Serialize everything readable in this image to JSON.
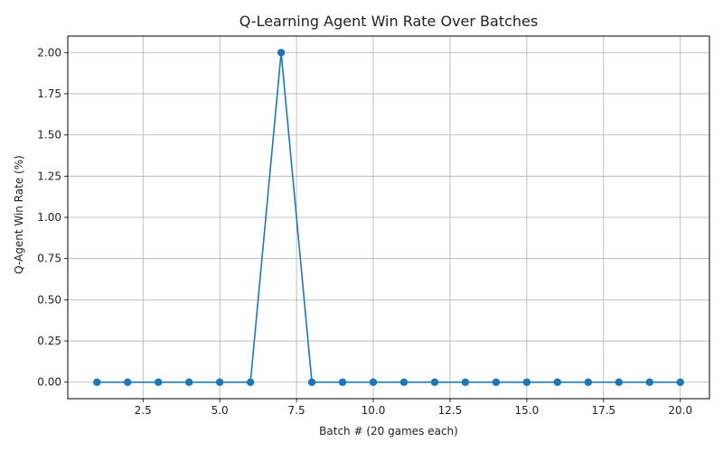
{
  "chart_data": {
    "type": "line",
    "title": "Q-Learning Agent Win Rate Over Batches",
    "xlabel": "Batch # (20 games each)",
    "ylabel": "Q-Agent Win Rate (%)",
    "xlim": [
      0.05,
      20.95
    ],
    "ylim": [
      -0.1,
      2.1
    ],
    "xticks": [
      2.5,
      5.0,
      7.5,
      10.0,
      12.5,
      15.0,
      17.5,
      20.0
    ],
    "xtick_labels": [
      "2.5",
      "5.0",
      "7.5",
      "10.0",
      "12.5",
      "15.0",
      "17.5",
      "20.0"
    ],
    "yticks": [
      0.0,
      0.25,
      0.5,
      0.75,
      1.0,
      1.25,
      1.5,
      1.75,
      2.0
    ],
    "ytick_labels": [
      "0.00",
      "0.25",
      "0.50",
      "0.75",
      "1.00",
      "1.25",
      "1.50",
      "1.75",
      "2.00"
    ],
    "grid": true,
    "series": [
      {
        "color": "#1f77b4",
        "marker": "circle",
        "x": [
          1,
          2,
          3,
          4,
          5,
          6,
          7,
          8,
          9,
          10,
          11,
          12,
          13,
          14,
          15,
          16,
          17,
          18,
          19,
          20
        ],
        "y": [
          0,
          0,
          0,
          0,
          0,
          0,
          2,
          0,
          0,
          0,
          0,
          0,
          0,
          0,
          0,
          0,
          0,
          0,
          0,
          0
        ]
      }
    ]
  }
}
